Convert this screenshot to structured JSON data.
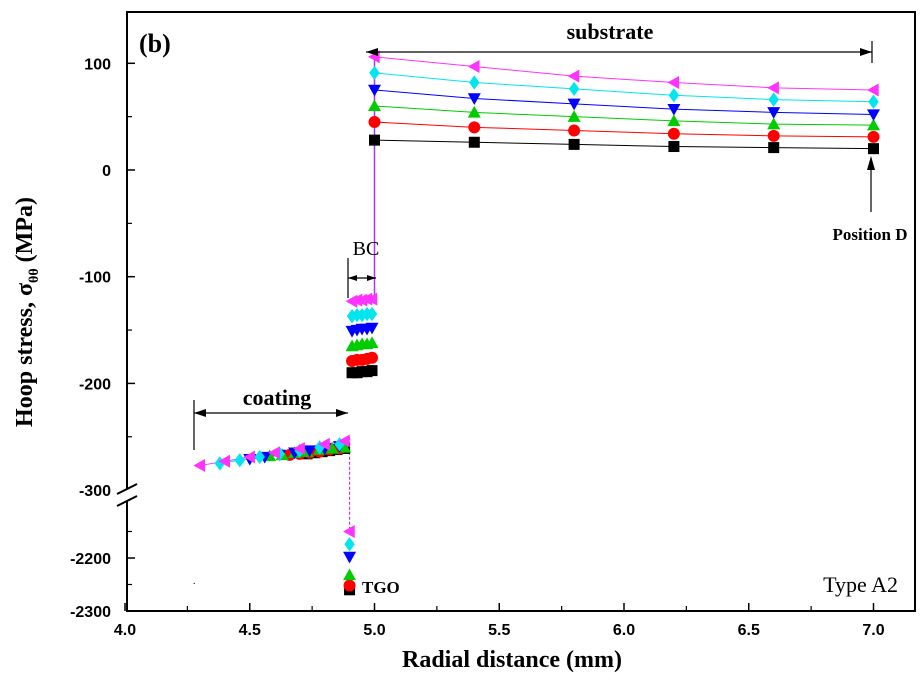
{
  "chart_data": {
    "type": "line",
    "panel_label": "(b)",
    "title": "",
    "xlabel": "Radial distance (mm)",
    "ylabel": {
      "text": "Hoop stress, σ",
      "subscript": "θθ",
      "unit": "(MPa)"
    },
    "xlim": [
      4.0,
      7.2
    ],
    "ylim_upper": [
      -300,
      150
    ],
    "ylim_lower": [
      -2300,
      -2130
    ],
    "axis_break": "between -300 and -2130",
    "x_ticks": [
      "4.0",
      "4.5",
      "5.0",
      "5.5",
      "6.0",
      "6.5",
      "7.0"
    ],
    "y_ticks_upper": [
      "100",
      "0",
      "-100",
      "-200",
      "-300"
    ],
    "y_ticks_lower": [
      "-2200",
      "-2300"
    ],
    "grid": false,
    "legend": "none",
    "annotations": {
      "substrate": "substrate",
      "coating": "coating",
      "bc": "BC",
      "position_d": "Position D",
      "tgo": "TGO",
      "type": "Type A2"
    },
    "series": [
      {
        "marker": "square",
        "color": "#000000",
        "coating": [
          [
            4.73,
            -266
          ],
          [
            4.76,
            -265
          ],
          [
            4.79,
            -264
          ],
          [
            4.82,
            -263
          ],
          [
            4.85,
            -262
          ],
          [
            4.88,
            -261
          ]
        ],
        "tgo": [
          [
            4.9,
            -2260
          ]
        ],
        "bc": [
          [
            4.91,
            -190
          ],
          [
            4.93,
            -190
          ],
          [
            4.95,
            -189
          ],
          [
            4.97,
            -189
          ],
          [
            4.99,
            -188
          ]
        ],
        "substrate": [
          [
            5.0,
            28
          ],
          [
            5.4,
            26
          ],
          [
            5.8,
            24
          ],
          [
            6.2,
            22
          ],
          [
            6.6,
            21
          ],
          [
            7.0,
            20
          ]
        ]
      },
      {
        "marker": "circle",
        "color": "#ff0000",
        "coating": [
          [
            4.66,
            -267
          ],
          [
            4.7,
            -266
          ],
          [
            4.74,
            -265
          ],
          [
            4.78,
            -264
          ],
          [
            4.82,
            -262
          ],
          [
            4.86,
            -261
          ]
        ],
        "tgo": [
          [
            4.9,
            -2252
          ]
        ],
        "bc": [
          [
            4.91,
            -179
          ],
          [
            4.93,
            -178
          ],
          [
            4.95,
            -178
          ],
          [
            4.97,
            -177
          ],
          [
            4.99,
            -176
          ]
        ],
        "substrate": [
          [
            5.0,
            45
          ],
          [
            5.4,
            40
          ],
          [
            5.8,
            37
          ],
          [
            6.2,
            34
          ],
          [
            6.6,
            32
          ],
          [
            7.0,
            31
          ]
        ]
      },
      {
        "marker": "triangle-up",
        "color": "#00cc00",
        "coating": [
          [
            4.58,
            -268
          ],
          [
            4.63,
            -267
          ],
          [
            4.68,
            -265
          ],
          [
            4.73,
            -264
          ],
          [
            4.78,
            -262
          ],
          [
            4.83,
            -261
          ],
          [
            4.88,
            -260
          ]
        ],
        "tgo": [
          [
            4.9,
            -2232
          ]
        ],
        "bc": [
          [
            4.91,
            -165
          ],
          [
            4.93,
            -164
          ],
          [
            4.95,
            -163
          ],
          [
            4.97,
            -163
          ],
          [
            4.99,
            -162
          ]
        ],
        "substrate": [
          [
            5.0,
            60
          ],
          [
            5.4,
            54
          ],
          [
            5.8,
            50
          ],
          [
            6.2,
            46
          ],
          [
            6.6,
            43
          ],
          [
            7.0,
            42
          ]
        ]
      },
      {
        "marker": "triangle-down",
        "color": "#0000ff",
        "coating": [
          [
            4.5,
            -271
          ],
          [
            4.56,
            -269
          ],
          [
            4.62,
            -267
          ],
          [
            4.68,
            -265
          ],
          [
            4.74,
            -263
          ],
          [
            4.8,
            -261
          ],
          [
            4.86,
            -259
          ]
        ],
        "tgo": [
          [
            4.9,
            -2198
          ]
        ],
        "bc": [
          [
            4.91,
            -151
          ],
          [
            4.93,
            -150
          ],
          [
            4.95,
            -149
          ],
          [
            4.97,
            -149
          ],
          [
            4.99,
            -148
          ]
        ],
        "substrate": [
          [
            5.0,
            75
          ],
          [
            5.4,
            67
          ],
          [
            5.8,
            62
          ],
          [
            6.2,
            57
          ],
          [
            6.6,
            54
          ],
          [
            7.0,
            52
          ]
        ]
      },
      {
        "marker": "diamond",
        "color": "#00e5ee",
        "coating": [
          [
            4.38,
            -275
          ],
          [
            4.46,
            -272
          ],
          [
            4.54,
            -269
          ],
          [
            4.62,
            -266
          ],
          [
            4.7,
            -263
          ],
          [
            4.78,
            -260
          ],
          [
            4.86,
            -257
          ]
        ],
        "tgo": [
          [
            4.9,
            -2174
          ]
        ],
        "bc": [
          [
            4.91,
            -137
          ],
          [
            4.93,
            -136
          ],
          [
            4.95,
            -136
          ],
          [
            4.97,
            -135
          ],
          [
            4.99,
            -135
          ]
        ],
        "substrate": [
          [
            5.0,
            91
          ],
          [
            5.4,
            82
          ],
          [
            5.8,
            76
          ],
          [
            6.2,
            70
          ],
          [
            6.6,
            66
          ],
          [
            7.0,
            64
          ]
        ]
      },
      {
        "marker": "triangle-left",
        "color": "#ff33ff",
        "coating": [
          [
            4.3,
            -277
          ],
          [
            4.4,
            -273
          ],
          [
            4.5,
            -269
          ],
          [
            4.6,
            -265
          ],
          [
            4.7,
            -261
          ],
          [
            4.8,
            -257
          ],
          [
            4.88,
            -254
          ]
        ],
        "tgo": [
          [
            4.9,
            -2150
          ]
        ],
        "bc": [
          [
            4.91,
            -123
          ],
          [
            4.93,
            -122
          ],
          [
            4.95,
            -122
          ],
          [
            4.97,
            -121
          ],
          [
            4.99,
            -121
          ]
        ],
        "substrate": [
          [
            5.0,
            106
          ],
          [
            5.4,
            97
          ],
          [
            5.8,
            88
          ],
          [
            6.2,
            82
          ],
          [
            6.6,
            77
          ],
          [
            7.0,
            75
          ]
        ]
      }
    ]
  }
}
